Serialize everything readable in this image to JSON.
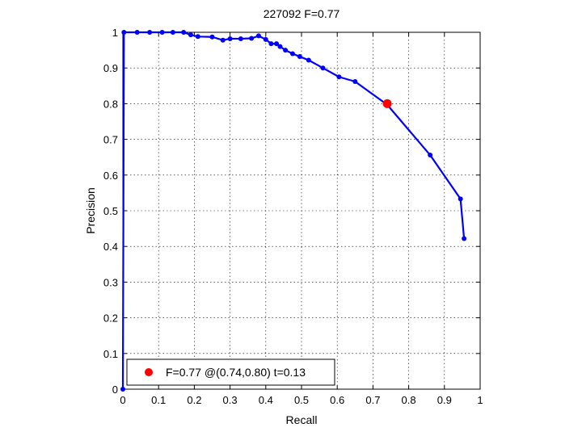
{
  "chart_data": {
    "type": "line",
    "title": "227092 F=0.77",
    "xlabel": "Recall",
    "ylabel": "Precision",
    "xlim": [
      0,
      1
    ],
    "ylim": [
      0,
      1
    ],
    "xticks": [
      0,
      0.1,
      0.2,
      0.3,
      0.4,
      0.5,
      0.6,
      0.7,
      0.8,
      0.9,
      1
    ],
    "yticks": [
      0,
      0.1,
      0.2,
      0.3,
      0.4,
      0.5,
      0.6,
      0.7,
      0.8,
      0.9,
      1
    ],
    "xtick_labels": [
      "0",
      "0.1",
      "0.2",
      "0.3",
      "0.4",
      "0.5",
      "0.6",
      "0.7",
      "0.8",
      "0.9",
      "1"
    ],
    "ytick_labels": [
      "0",
      "0.1",
      "0.2",
      "0.3",
      "0.4",
      "0.5",
      "0.6",
      "0.7",
      "0.8",
      "0.9",
      "1"
    ],
    "grid": true,
    "series": [
      {
        "color": "#0000ff",
        "x": [
          0.0,
          0.003,
          0.04,
          0.075,
          0.11,
          0.14,
          0.17,
          0.19,
          0.21,
          0.25,
          0.28,
          0.3,
          0.33,
          0.36,
          0.38,
          0.4,
          0.415,
          0.43,
          0.44,
          0.455,
          0.475,
          0.495,
          0.52,
          0.56,
          0.605,
          0.65,
          0.74,
          0.86,
          0.945,
          0.955
        ],
        "y": [
          0.0,
          1.0,
          1.0,
          1.0,
          1.0,
          1.0,
          1.0,
          0.993,
          0.988,
          0.987,
          0.978,
          0.982,
          0.982,
          0.983,
          0.99,
          0.98,
          0.968,
          0.968,
          0.96,
          0.95,
          0.94,
          0.932,
          0.922,
          0.9,
          0.875,
          0.862,
          0.797,
          0.656,
          0.533,
          0.422
        ]
      }
    ],
    "highlight": {
      "x": 0.74,
      "y": 0.8,
      "color": "#ff0000"
    },
    "legend": {
      "position": "bottom-left",
      "label": "F=0.77 @(0.74,0.80) t=0.13"
    }
  }
}
